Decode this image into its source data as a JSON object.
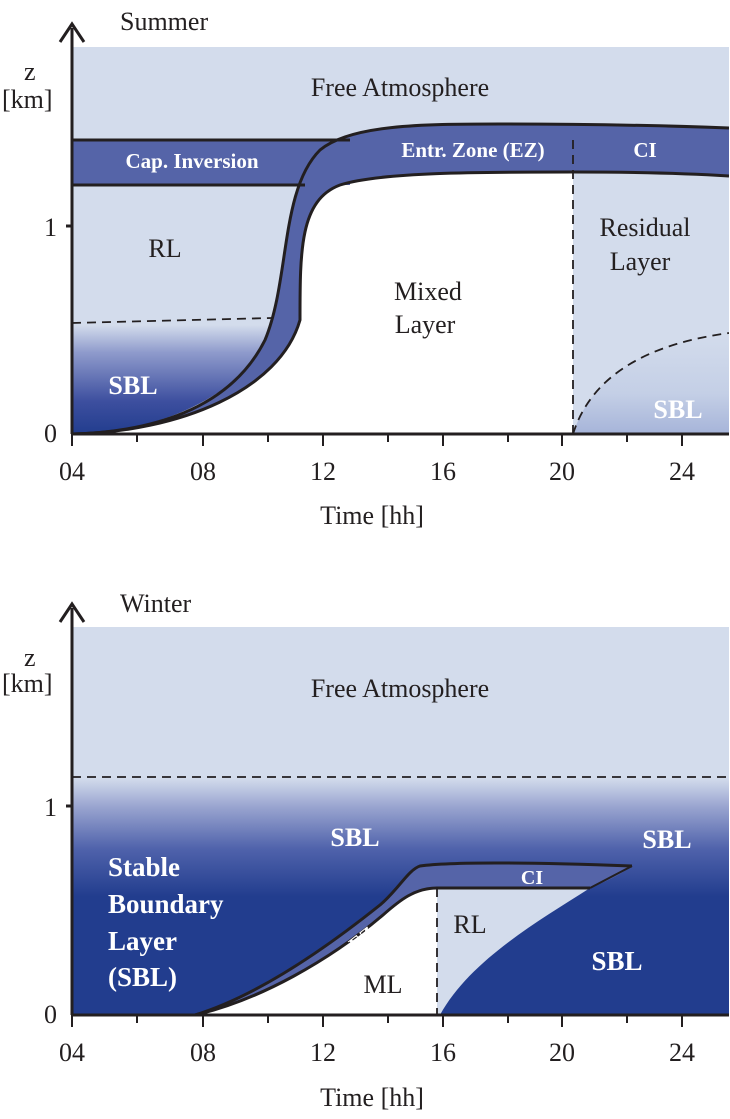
{
  "summer": {
    "title": "Summer",
    "ylabel_z": "z",
    "ylabel_unit": "[km]",
    "xlabel": "Time [hh]",
    "y_ticks": [
      "0",
      "1"
    ],
    "x_ticks": [
      "04",
      "08",
      "12",
      "16",
      "20",
      "24"
    ],
    "labels": {
      "free_atmosphere": "Free Atmosphere",
      "cap_inversion": "Cap. Inversion",
      "entrainment_zone": "Entr. Zone (EZ)",
      "ci": "CI",
      "rl": "RL",
      "mixed_1": "Mixed",
      "mixed_2": "Layer",
      "residual_1": "Residual",
      "residual_2": "Layer",
      "sbl_left": "SBL",
      "sbl_right": "SBL"
    }
  },
  "winter": {
    "title": "Winter",
    "ylabel_z": "z",
    "ylabel_unit": "[km]",
    "xlabel": "Time [hh]",
    "y_ticks": [
      "0",
      "1"
    ],
    "x_ticks": [
      "04",
      "08",
      "12",
      "16",
      "20",
      "24"
    ],
    "labels": {
      "free_atmosphere": "Free Atmosphere",
      "sbl_upper_left": "SBL",
      "sbl_upper_right": "SBL",
      "stable_1": "Stable",
      "stable_2": "Boundary",
      "stable_3": "Layer",
      "stable_4": "(SBL)",
      "ez": "EZ",
      "ci": "CI",
      "rl": "RL",
      "ml": "ML",
      "sbl_lower_right": "SBL"
    }
  },
  "colors": {
    "light_blue": "#d3dcec",
    "band_blue": "#5564a8",
    "deep_blue": "#223d8e",
    "axis": "#231f20"
  }
}
